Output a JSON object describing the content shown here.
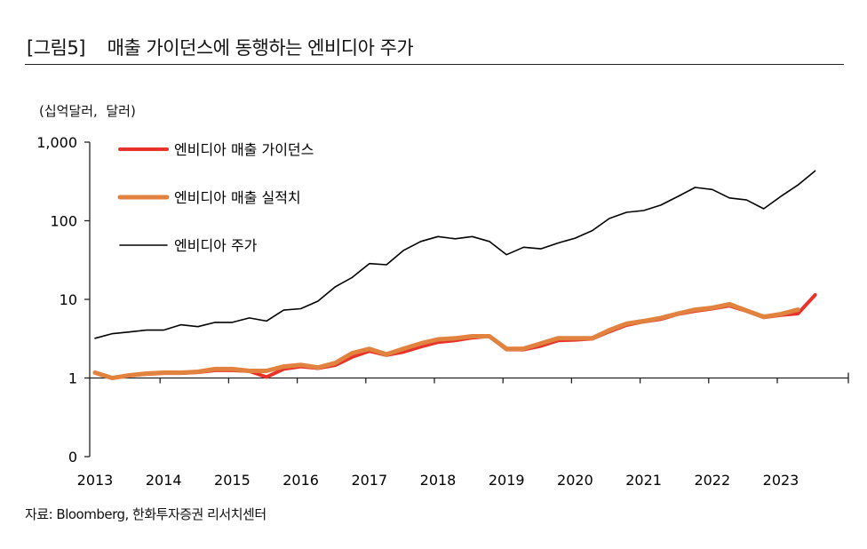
{
  "title": "[그림5]    매출 가이던스에 동행하는 엔비디아 주가",
  "unit_label": "(십억달러,  달러)",
  "source": "자료: Bloomberg, 한화투자증권 리서치센터",
  "chart_data": {
    "type": "line",
    "yscale": "log",
    "ylim": [
      0.1,
      1000
    ],
    "y_ticks": [
      0.1,
      1,
      10,
      100,
      1000
    ],
    "y_tick_labels": [
      "0",
      "1",
      "10",
      "100",
      "1,000"
    ],
    "x_tick_labels": [
      "2013",
      "2014",
      "2015",
      "2016",
      "2017",
      "2018",
      "2019",
      "2020",
      "2021",
      "2022",
      "2023"
    ],
    "x_frequency": "quarterly",
    "x_start": "2013Q1",
    "grid": false,
    "legend_placement": "top-left",
    "series": [
      {
        "name": "엔비디아  매출 가이던스",
        "color": "#e8322a",
        "values": [
          1.17,
          1.0,
          1.08,
          1.12,
          1.15,
          1.15,
          1.18,
          1.25,
          1.25,
          1.22,
          1.03,
          1.3,
          1.4,
          1.33,
          1.45,
          1.85,
          2.2,
          1.95,
          2.15,
          2.5,
          2.85,
          3.0,
          3.25,
          3.4,
          2.3,
          2.3,
          2.55,
          3.0,
          3.05,
          3.15,
          3.9,
          4.7,
          5.2,
          5.6,
          6.5,
          7.1,
          7.6,
          8.3,
          7.1,
          5.9,
          6.3,
          6.6,
          11.4
        ]
      },
      {
        "name": "엔비디아  매출 실적치",
        "color": "#e2823f",
        "values": [
          1.17,
          1.0,
          1.08,
          1.14,
          1.17,
          1.17,
          1.2,
          1.3,
          1.3,
          1.23,
          1.23,
          1.4,
          1.47,
          1.36,
          1.55,
          2.07,
          2.35,
          2.0,
          2.36,
          2.75,
          3.1,
          3.2,
          3.4,
          3.4,
          2.35,
          2.36,
          2.75,
          3.2,
          3.2,
          3.2,
          4.06,
          4.9,
          5.3,
          5.8,
          6.6,
          7.4,
          7.8,
          8.7,
          7.2,
          6.0,
          6.5,
          7.4,
          null
        ]
      },
      {
        "name": "엔비디아  주가",
        "color": "#000000",
        "values": [
          3.2,
          3.66,
          3.85,
          4.06,
          4.06,
          4.75,
          4.5,
          5.1,
          5.1,
          5.8,
          5.3,
          7.3,
          7.6,
          9.5,
          14.4,
          19,
          28.5,
          27.6,
          42,
          54.6,
          63,
          59,
          63,
          54.6,
          37,
          46,
          44,
          52,
          60,
          75,
          107,
          128,
          135,
          158,
          204,
          265,
          250,
          195,
          184,
          142,
          204,
          285,
          430
        ]
      }
    ]
  }
}
